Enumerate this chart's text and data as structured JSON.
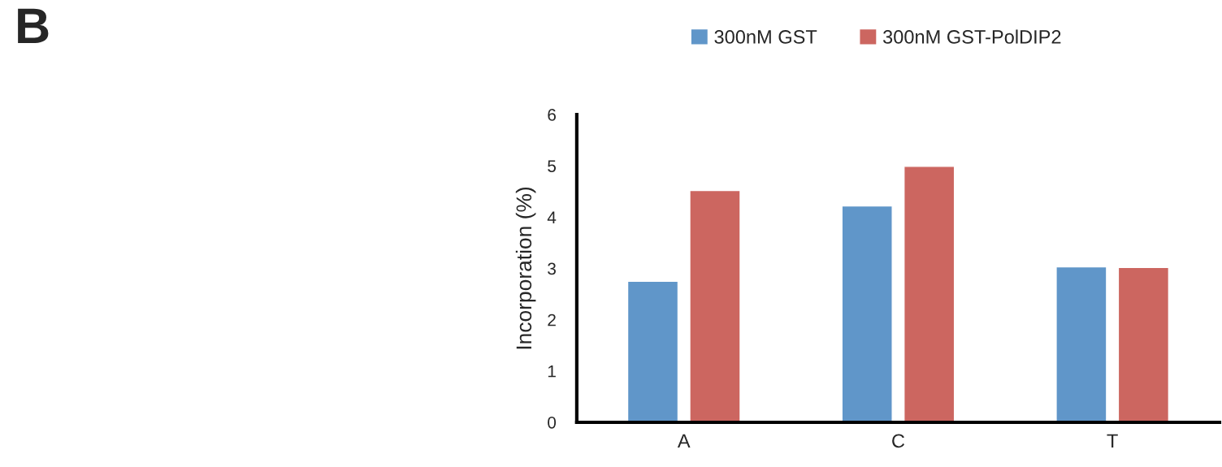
{
  "chart_data": {
    "type": "bar",
    "annotations": [
      "B"
    ],
    "ylabel": "Incorporation (%)",
    "categories": [
      "A",
      "C",
      "T"
    ],
    "series": [
      {
        "name": "300nM GST",
        "color": "#6096c9",
        "values": [
          2.75,
          4.22,
          3.03
        ]
      },
      {
        "name": "300nM GST-PolDIP2",
        "color": "#cc6660",
        "values": [
          4.52,
          4.99,
          3.02
        ]
      }
    ],
    "ylim": [
      0,
      6
    ],
    "yticks": [
      0,
      1,
      2,
      3,
      4,
      5,
      6
    ],
    "grid": false,
    "legend": "top"
  }
}
